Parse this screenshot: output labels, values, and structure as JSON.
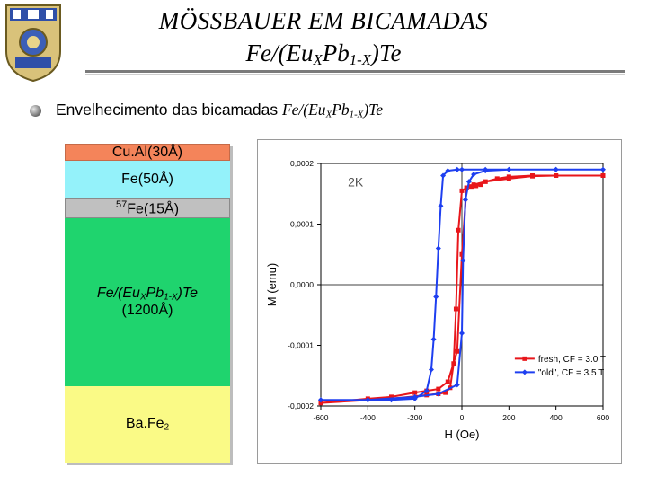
{
  "slide": {
    "title_line1": "MÖSSBAUER EM BICAMADAS",
    "title_line2_parts": [
      "Fe/(Eu",
      "X",
      "Pb",
      "1-X",
      ")Te"
    ],
    "bullet_text": "Envelhecimento das bicamadas",
    "bullet_formula_parts": [
      "Fe/(Eu",
      "X",
      "Pb",
      "1-X",
      ")Te"
    ]
  },
  "stack": {
    "layer_cual": "Cu.Al(30Å)",
    "layer_fe50": "Fe(50Å)",
    "layer_57fe_sup": "57",
    "layer_57fe": "Fe(15Å)",
    "layer_euxpb_parts": [
      "Fe/(Eu",
      "X",
      "Pb",
      "1-X",
      ")Te"
    ],
    "layer_euxpb_thickness": "(1200Å)",
    "layer_bafe_parts": [
      "Ba.Fe",
      "2"
    ]
  },
  "colors": {
    "fresh": "#e8161b",
    "old": "#1e3ff0",
    "cual": "#f4845a",
    "fe": "#94f2fa",
    "fe57": "#c0c0c0",
    "euxpb": "#1fd46e",
    "bafe": "#fafa86"
  },
  "chart_data": {
    "type": "line",
    "annotation": "2K",
    "xlabel": "H (Oe)",
    "ylabel": "M (emu)",
    "xlim": [
      -600,
      600
    ],
    "ylim": [
      -0.0002,
      0.0002
    ],
    "xticks": [
      "-600",
      "-400",
      "-200",
      "0",
      "200",
      "400",
      "600"
    ],
    "yticks": [
      "0,0002",
      "0,0001",
      "0,0000",
      "-0,0001",
      "-0,0002"
    ],
    "grid": false,
    "legend_position": "bottom-right",
    "series": [
      {
        "name": "fresh, CF = 3.0 T",
        "color": "#e8161b",
        "marker": "square",
        "x": [
          -600,
          -300,
          -150,
          -100,
          -70,
          -50,
          -35,
          -25,
          -15,
          0,
          20,
          40,
          60,
          80,
          100,
          150,
          200,
          300,
          400,
          600,
          400,
          300,
          200,
          100,
          50,
          20,
          0,
          -20,
          -60,
          -100,
          -150,
          -200,
          -300,
          -400,
          -600
        ],
        "y": [
          -0.000195,
          -0.000188,
          -0.000182,
          -0.00018,
          -0.000178,
          -0.00017,
          -0.00013,
          -4e-05,
          9e-05,
          0.000155,
          0.00016,
          0.000162,
          0.000163,
          0.000165,
          0.00017,
          0.000175,
          0.000178,
          0.00018,
          0.00018,
          0.00018,
          0.00018,
          0.000179,
          0.000175,
          0.00017,
          0.000165,
          0.00016,
          5e-05,
          -0.00011,
          -0.00016,
          -0.000172,
          -0.000175,
          -0.000178,
          -0.000185,
          -0.000188,
          -0.000195
        ]
      },
      {
        "name": "\"old\", CF = 3.5 T",
        "color": "#1e3ff0",
        "marker": "diamond",
        "x": [
          -600,
          -400,
          -300,
          -200,
          -150,
          -130,
          -120,
          -110,
          -100,
          -90,
          -80,
          -60,
          -20,
          0,
          100,
          200,
          400,
          600,
          400,
          200,
          100,
          50,
          30,
          15,
          5,
          0,
          -20,
          -100,
          -200,
          -400,
          -600
        ],
        "y": [
          -0.00019,
          -0.00019,
          -0.00019,
          -0.000188,
          -0.000175,
          -0.00014,
          -9e-05,
          -2e-05,
          6e-05,
          0.00013,
          0.00018,
          0.000188,
          0.00019,
          0.00019,
          0.00019,
          0.00019,
          0.00019,
          0.00019,
          0.00019,
          0.00019,
          0.000188,
          0.000182,
          0.00017,
          0.00014,
          4e-05,
          -8e-05,
          -0.000165,
          -0.00018,
          -0.000185,
          -0.00019,
          -0.00019
        ]
      }
    ]
  }
}
